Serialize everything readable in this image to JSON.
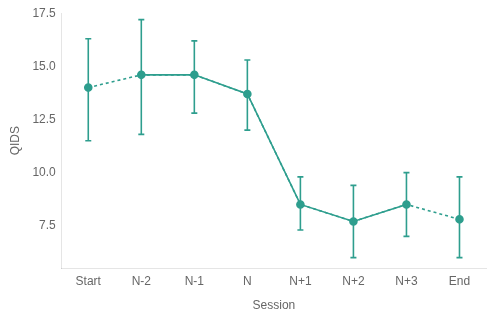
{
  "chart_data": {
    "type": "line",
    "xlabel": "Session",
    "ylabel": "QIDS",
    "categories": [
      "Start",
      "N-2",
      "N-1",
      "N",
      "N+1",
      "N+2",
      "N+3",
      "End"
    ],
    "series": [
      {
        "color": "#2e9e8e",
        "marker": "circle",
        "line_style": "dotted",
        "values": [
          14.0,
          14.6,
          14.6,
          13.7,
          8.5,
          7.7,
          8.5,
          7.8
        ],
        "lower": [
          11.5,
          11.8,
          12.8,
          12.0,
          7.3,
          6.0,
          7.0,
          6.0
        ],
        "upper": [
          16.3,
          17.2,
          16.2,
          15.3,
          9.8,
          9.4,
          10.0,
          9.8
        ]
      },
      {
        "color": "#2e9e8e",
        "marker": "none",
        "line_style": "solid",
        "values": [
          null,
          14.6,
          14.6,
          13.7,
          8.5,
          7.7,
          8.5,
          null
        ]
      }
    ],
    "ylim": [
      5.5,
      17.5
    ],
    "yticks": [
      7.5,
      {
        "value": 10.0,
        "label": "10.0"
      },
      12.5,
      {
        "value": 15.0,
        "label": "15.0"
      },
      17.5
    ],
    "grid": false
  }
}
